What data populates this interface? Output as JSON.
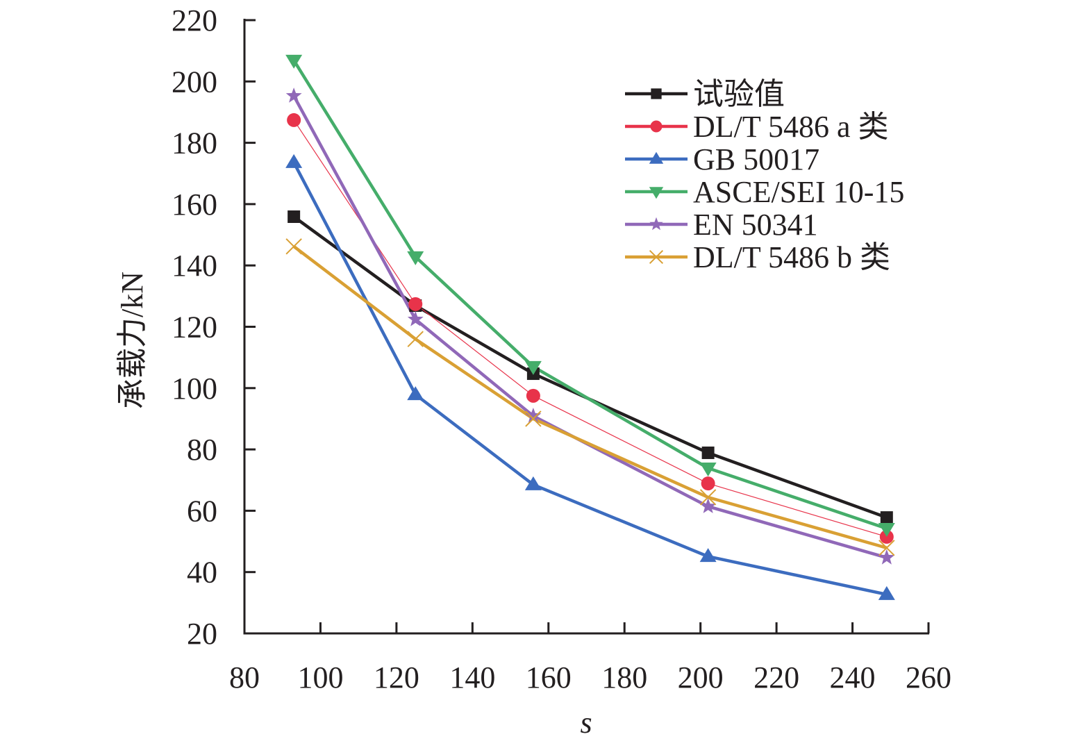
{
  "chart_data": {
    "type": "line",
    "title": "",
    "xlabel": "s",
    "ylabel": "承载力/kN",
    "xlim": [
      80,
      260
    ],
    "ylim": [
      20,
      220
    ],
    "xticks": [
      80,
      100,
      120,
      140,
      160,
      180,
      200,
      220,
      240,
      260
    ],
    "yticks": [
      20,
      40,
      60,
      80,
      100,
      120,
      140,
      160,
      180,
      200,
      220
    ],
    "grid": false,
    "legend_position": "top-right",
    "x": [
      93,
      125,
      156,
      202,
      249
    ],
    "series": [
      {
        "name": "试验值",
        "marker": "square",
        "color": "#231f20",
        "line_weight": "thick",
        "values": [
          155.9,
          126.9,
          104.7,
          78.9,
          57.8
        ]
      },
      {
        "name": "DL/T 5486 a 类",
        "marker": "circle",
        "color": "#e8334a",
        "line_weight": "thin",
        "values": [
          187.4,
          127.4,
          97.5,
          68.9,
          51.5
        ]
      },
      {
        "name": "GB 50017",
        "marker": "triangle-up",
        "color": "#3c6cbf",
        "line_weight": "thick",
        "values": [
          173.6,
          97.9,
          68.5,
          45.1,
          32.7
        ]
      },
      {
        "name": "ASCE/SEI 10-15",
        "marker": "triangle-down",
        "color": "#45ad6a",
        "line_weight": "thick",
        "values": [
          206.9,
          142.8,
          107.0,
          73.9,
          54.2
        ]
      },
      {
        "name": "EN 50341",
        "marker": "star",
        "color": "#9068b8",
        "line_weight": "thick",
        "values": [
          195.3,
          122.4,
          90.9,
          61.4,
          44.7
        ]
      },
      {
        "name": "DL/T 5486 b 类",
        "marker": "x",
        "color": "#d9a034",
        "line_weight": "thick",
        "values": [
          146.2,
          116.0,
          90.0,
          64.4,
          47.9
        ]
      }
    ]
  }
}
